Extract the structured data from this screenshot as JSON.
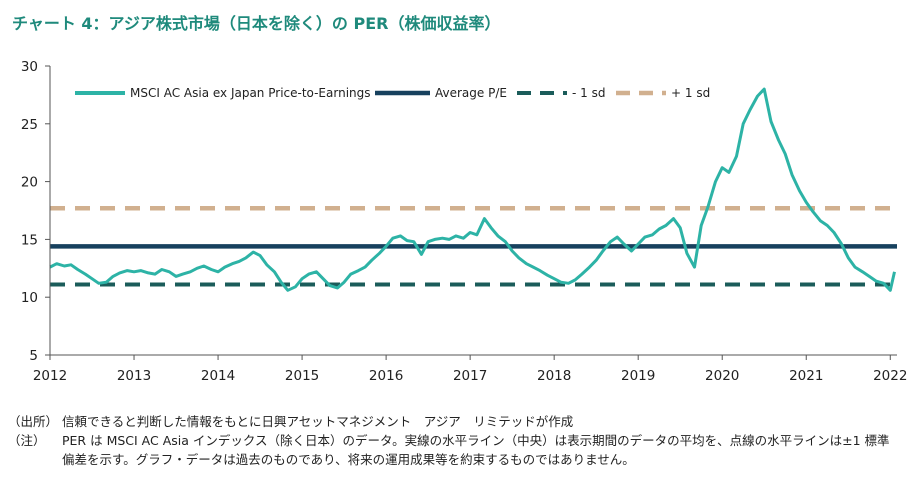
{
  "title": "チャート 4：アジア株式市場（日本を除く）の PER（株価収益率）",
  "colors": {
    "series": "#2db3a6",
    "average": "#17415e",
    "minus1sd": "#1b5c5a",
    "plus1sd": "#d1b08f"
  },
  "chart_data": {
    "type": "line",
    "xlim": [
      2012.0,
      2022.08
    ],
    "ylim": [
      5,
      30
    ],
    "x_ticks": [
      "2012",
      "2013",
      "2014",
      "2015",
      "2016",
      "2017",
      "2018",
      "2019",
      "2020",
      "2021",
      "2022"
    ],
    "y_ticks": [
      "5",
      "10",
      "15",
      "20",
      "25",
      "30"
    ],
    "legend_position": "top",
    "series": [
      {
        "name": "MSCI AC Asia ex Japan Price-to-Earnings",
        "x": [
          2012.0,
          2012.08,
          2012.17,
          2012.25,
          2012.33,
          2012.42,
          2012.5,
          2012.58,
          2012.67,
          2012.75,
          2012.83,
          2012.92,
          2013.0,
          2013.08,
          2013.17,
          2013.25,
          2013.33,
          2013.42,
          2013.5,
          2013.58,
          2013.67,
          2013.75,
          2013.83,
          2013.92,
          2014.0,
          2014.08,
          2014.17,
          2014.25,
          2014.33,
          2014.42,
          2014.5,
          2014.58,
          2014.67,
          2014.75,
          2014.83,
          2014.92,
          2015.0,
          2015.08,
          2015.17,
          2015.25,
          2015.33,
          2015.42,
          2015.5,
          2015.58,
          2015.67,
          2015.75,
          2015.83,
          2015.92,
          2016.0,
          2016.08,
          2016.17,
          2016.25,
          2016.33,
          2016.42,
          2016.5,
          2016.58,
          2016.67,
          2016.75,
          2016.83,
          2016.92,
          2017.0,
          2017.08,
          2017.17,
          2017.25,
          2017.33,
          2017.42,
          2017.5,
          2017.58,
          2017.67,
          2017.75,
          2017.83,
          2017.92,
          2018.0,
          2018.08,
          2018.17,
          2018.25,
          2018.33,
          2018.42,
          2018.5,
          2018.58,
          2018.67,
          2018.75,
          2018.83,
          2018.92,
          2019.0,
          2019.08,
          2019.17,
          2019.25,
          2019.33,
          2019.42,
          2019.5,
          2019.58,
          2019.67,
          2019.75,
          2019.83,
          2019.92,
          2020.0,
          2020.08,
          2020.17,
          2020.25,
          2020.33,
          2020.42,
          2020.5,
          2020.58,
          2020.67,
          2020.75,
          2020.83,
          2020.92,
          2021.0,
          2021.08,
          2021.17,
          2021.25,
          2021.33,
          2021.42,
          2021.5,
          2021.58,
          2021.67,
          2021.75,
          2021.83,
          2021.92,
          2022.0,
          2022.05
        ],
        "values": [
          12.6,
          12.9,
          12.7,
          12.8,
          12.4,
          12.0,
          11.6,
          11.2,
          11.3,
          11.8,
          12.1,
          12.3,
          12.2,
          12.3,
          12.1,
          12.0,
          12.4,
          12.2,
          11.8,
          12.0,
          12.2,
          12.5,
          12.7,
          12.4,
          12.2,
          12.6,
          12.9,
          13.1,
          13.4,
          13.9,
          13.6,
          12.8,
          12.2,
          11.3,
          10.6,
          10.9,
          11.6,
          12.0,
          12.2,
          11.6,
          11.0,
          10.8,
          11.3,
          12.0,
          12.3,
          12.6,
          13.2,
          13.8,
          14.4,
          15.1,
          15.3,
          14.9,
          14.8,
          13.7,
          14.8,
          15.0,
          15.1,
          15.0,
          15.3,
          15.1,
          15.6,
          15.4,
          16.8,
          16.0,
          15.3,
          14.8,
          14.0,
          13.4,
          12.9,
          12.6,
          12.3,
          11.9,
          11.6,
          11.3,
          11.2,
          11.5,
          12.0,
          12.6,
          13.2,
          14.0,
          14.8,
          15.2,
          14.6,
          14.0,
          14.6,
          15.2,
          15.4,
          15.9,
          16.2,
          16.8,
          16.0,
          13.8,
          12.6,
          16.2,
          17.8,
          20.0,
          21.2,
          20.8,
          22.2,
          25.0,
          26.2,
          27.4,
          28.0,
          25.2,
          23.6,
          22.4,
          20.6,
          19.2,
          18.2,
          17.4,
          16.6,
          16.2,
          15.6,
          14.6,
          13.4,
          12.6,
          12.2,
          11.8,
          11.4,
          11.2,
          10.6,
          12.2
        ]
      },
      {
        "name": "Average P/E",
        "value": 14.4
      },
      {
        "name": "- 1 sd",
        "value": 11.1
      },
      {
        "name": "+ 1 sd",
        "value": 17.7
      }
    ]
  },
  "notes": [
    {
      "head": "（出所）",
      "body": "信頼できると判断した情報をもとに日興アセットマネジメント　アジア　リミテッドが作成"
    },
    {
      "head": "（注）",
      "body": "PER は MSCI AC Asia インデックス（除く日本）のデータ。実線の水平ライン（中央）は表示期間のデータの平均を、点線の水平ラインは±1 標準偏差を示す。グラフ・データは過去のものであり、将来の運用成果等を約束するものではありません。"
    }
  ]
}
